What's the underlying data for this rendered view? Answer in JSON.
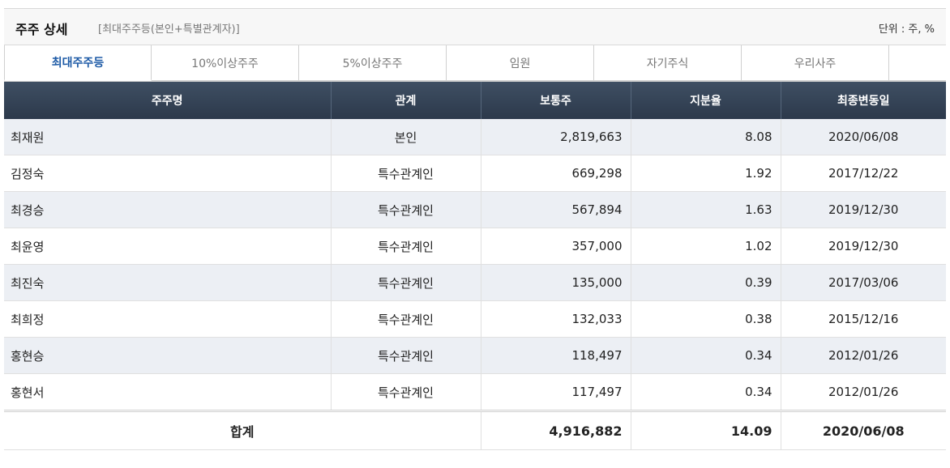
{
  "header": {
    "title": "주주 상세",
    "subtitle": "[최대주주등(본인+특별관계자)]",
    "unit": "단위 : 주, %"
  },
  "tabs": [
    {
      "label": "최대주주등",
      "active": true
    },
    {
      "label": "10%이상주주",
      "active": false
    },
    {
      "label": "5%이상주주",
      "active": false
    },
    {
      "label": "임원",
      "active": false
    },
    {
      "label": "자기주식",
      "active": false
    },
    {
      "label": "우리사주",
      "active": false
    }
  ],
  "table": {
    "columns": [
      "주주명",
      "관계",
      "보통주",
      "지분율",
      "최종변동일"
    ],
    "rows": [
      {
        "name": "최재원",
        "relation": "본인",
        "shares": "2,819,663",
        "ratio": "8.08",
        "date": "2020/06/08"
      },
      {
        "name": "김정숙",
        "relation": "특수관계인",
        "shares": "669,298",
        "ratio": "1.92",
        "date": "2017/12/22"
      },
      {
        "name": "최경승",
        "relation": "특수관계인",
        "shares": "567,894",
        "ratio": "1.63",
        "date": "2019/12/30"
      },
      {
        "name": "최윤영",
        "relation": "특수관계인",
        "shares": "357,000",
        "ratio": "1.02",
        "date": "2019/12/30"
      },
      {
        "name": "최진숙",
        "relation": "특수관계인",
        "shares": "135,000",
        "ratio": "0.39",
        "date": "2017/03/06"
      },
      {
        "name": "최희정",
        "relation": "특수관계인",
        "shares": "132,033",
        "ratio": "0.38",
        "date": "2015/12/16"
      },
      {
        "name": "홍현승",
        "relation": "특수관계인",
        "shares": "118,497",
        "ratio": "0.34",
        "date": "2012/01/26"
      },
      {
        "name": "홍현서",
        "relation": "특수관계인",
        "shares": "117,497",
        "ratio": "0.34",
        "date": "2012/01/26"
      }
    ],
    "total": {
      "label": "합계",
      "shares": "4,916,882",
      "ratio": "14.09",
      "date": "2020/06/08"
    }
  },
  "colors": {
    "header_bg": "#2c394b",
    "active_tab": "#1d5aa6",
    "alt_row": "#eceff4"
  }
}
